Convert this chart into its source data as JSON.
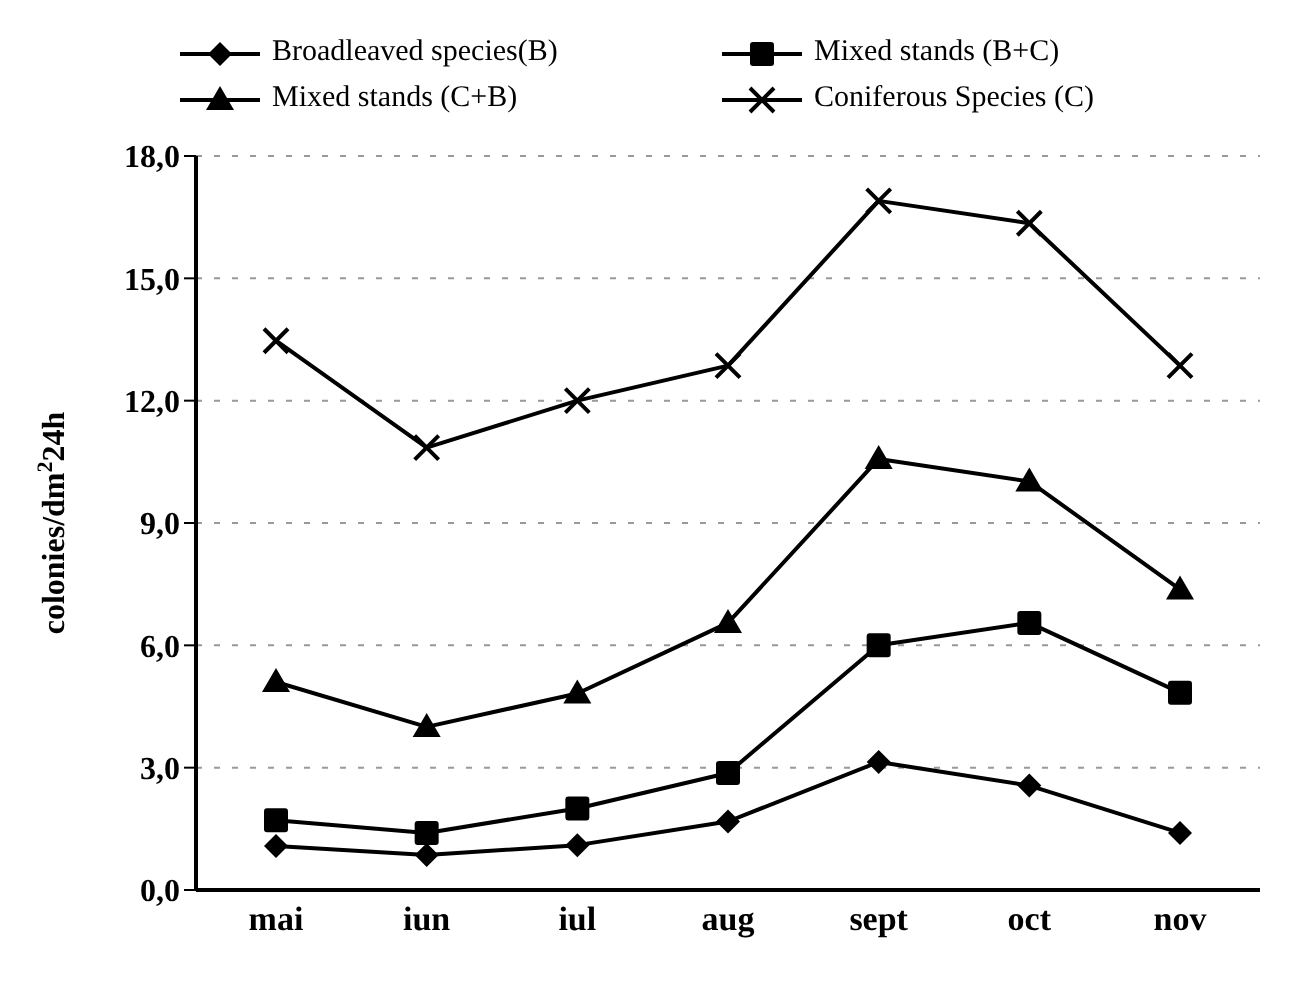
{
  "chart_data": {
    "type": "line",
    "ylabel": "colonies/dm$^{2}$24h",
    "categories": [
      "mai",
      "iun",
      "iul",
      "aug",
      "sept",
      "oct",
      "nov"
    ],
    "series": [
      {
        "name": "Broadleaved species(B)",
        "color": "#000000",
        "marker": "diamond",
        "values": [
          1.08,
          0.86,
          1.1,
          1.68,
          3.14,
          2.56,
          1.4
        ]
      },
      {
        "name": "Mixed stands (B+C)",
        "color": "#000000",
        "marker": "square",
        "values": [
          1.71,
          1.4,
          2.0,
          2.87,
          6.0,
          6.55,
          4.84
        ]
      },
      {
        "name": "Mixed stands (C+B)",
        "color": "#000000",
        "marker": "triangle",
        "values": [
          5.1,
          4.0,
          4.82,
          6.55,
          10.57,
          10.02,
          7.37
        ]
      },
      {
        "name": "Coniferous Species (C)",
        "color": "#000000",
        "marker": "cross",
        "values": [
          13.47,
          10.85,
          12.0,
          12.86,
          16.9,
          16.35,
          12.86
        ]
      }
    ],
    "ylim": [
      0,
      18
    ],
    "yticks": [
      {
        "value": 0,
        "label": "0,0"
      },
      {
        "value": 3,
        "label": "3,0"
      },
      {
        "value": 6,
        "label": "6,0"
      },
      {
        "value": 9,
        "label": "9,0"
      },
      {
        "value": 12,
        "label": "12,0"
      },
      {
        "value": 15,
        "label": "15,0"
      },
      {
        "value": 18,
        "label": "18,0"
      }
    ],
    "grid": "y",
    "legend": "top",
    "line_style": "solid"
  }
}
